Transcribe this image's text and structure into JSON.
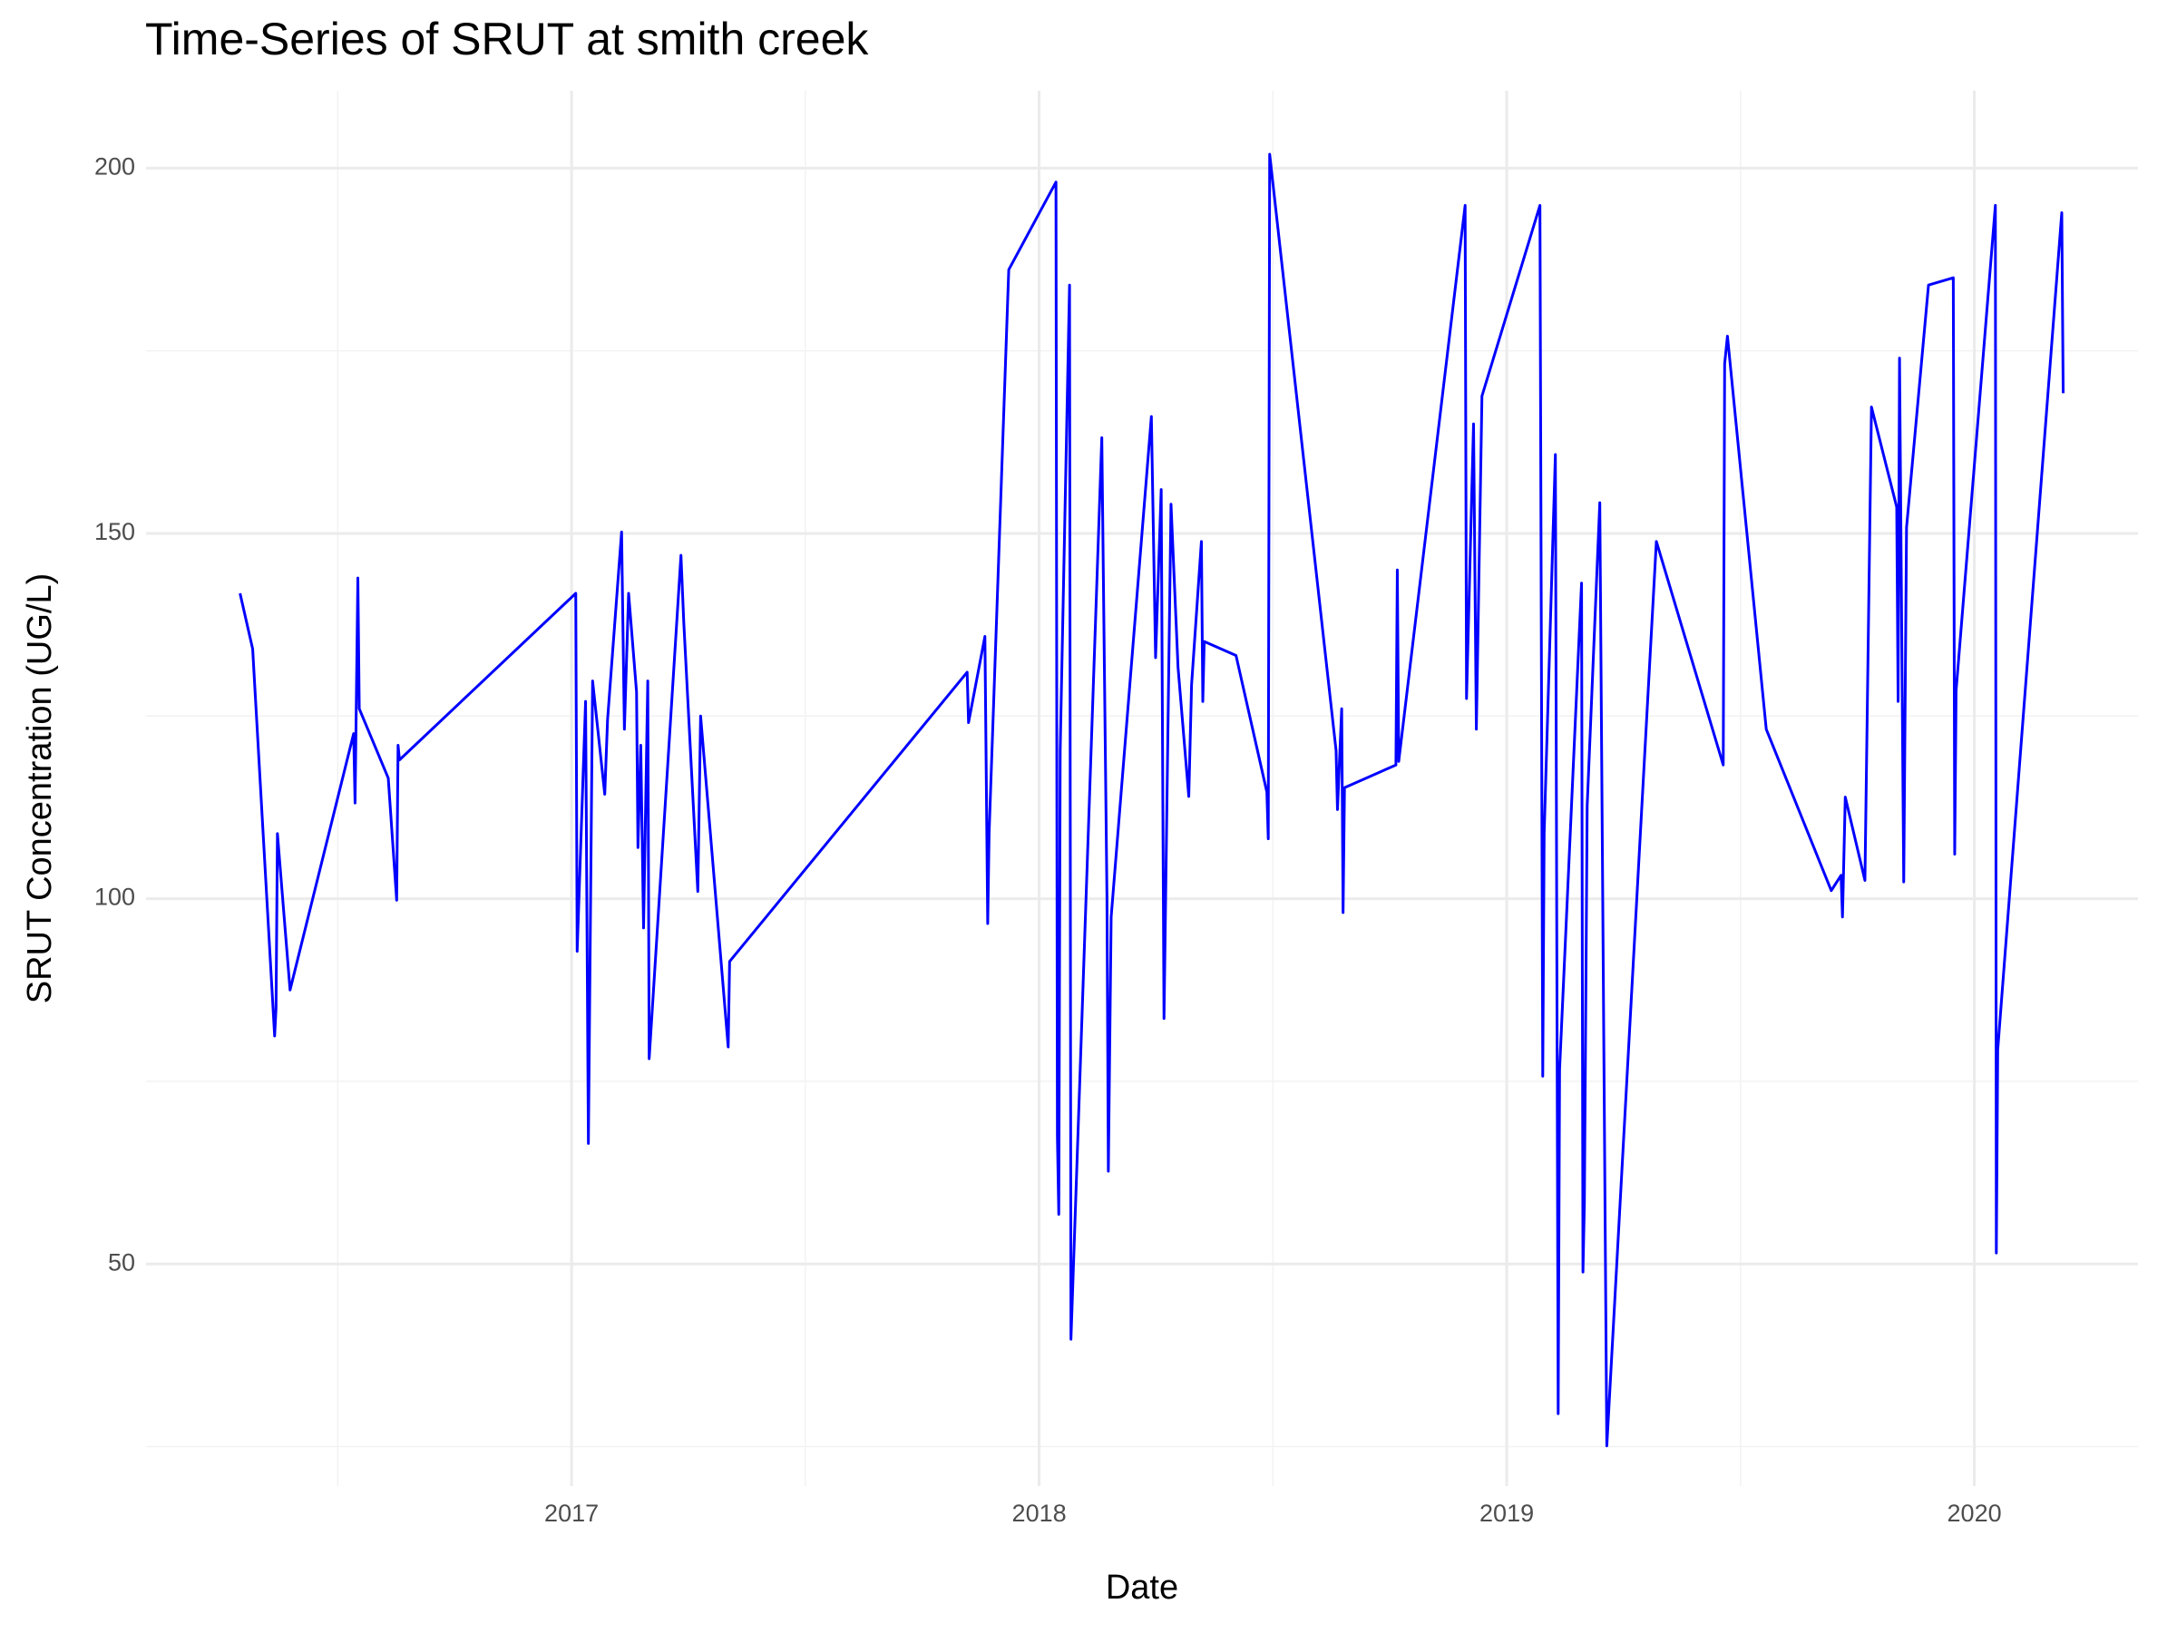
{
  "chart_data": {
    "type": "line",
    "title": "Time-Series of SRUT at smith creek",
    "x_label": "Date",
    "y_label": "SRUT Concentration (UG/L)",
    "color": "#0000ff",
    "grid": true,
    "xlim": [
      2016.09,
      2020.35
    ],
    "xticks": [
      2017,
      2018,
      2019,
      2020
    ],
    "ylim": [
      19.6,
      210.6
    ],
    "yticks": [
      50,
      100,
      150,
      200
    ],
    "x": [
      2016.291,
      2016.318,
      2016.365,
      2016.368,
      2016.371,
      2016.398,
      2016.534,
      2016.537,
      2016.543,
      2016.546,
      2016.608,
      2016.626,
      2016.629,
      2016.632,
      2017.009,
      2017.012,
      2017.03,
      2017.036,
      2017.045,
      2017.071,
      2017.077,
      2017.107,
      2017.113,
      2017.122,
      2017.139,
      2017.142,
      2017.148,
      2017.154,
      2017.163,
      2017.166,
      2017.234,
      2017.24,
      2017.27,
      2017.276,
      2017.335,
      2017.338,
      2017.846,
      2017.849,
      2017.884,
      2017.89,
      2017.893,
      2017.935,
      2018.036,
      2018.039,
      2018.042,
      2018.045,
      2018.065,
      2018.068,
      2018.134,
      2018.145,
      2018.148,
      2018.154,
      2018.24,
      2018.249,
      2018.261,
      2018.267,
      2018.282,
      2018.297,
      2018.32,
      2018.326,
      2018.347,
      2018.35,
      2018.353,
      2018.421,
      2018.487,
      2018.49,
      2018.493,
      2018.635,
      2018.638,
      2018.647,
      2018.65,
      2018.653,
      2018.763,
      2018.766,
      2018.769,
      2018.911,
      2018.914,
      2018.929,
      2018.935,
      2018.947,
      2019.071,
      2019.077,
      2019.08,
      2019.104,
      2019.11,
      2019.113,
      2019.16,
      2019.163,
      2019.166,
      2019.172,
      2019.199,
      2019.214,
      2019.32,
      2019.463,
      2019.466,
      2019.472,
      2019.555,
      2019.694,
      2019.715,
      2019.718,
      2019.724,
      2019.766,
      2019.78,
      2019.834,
      2019.837,
      2019.84,
      2019.849,
      2019.855,
      2019.902,
      2019.955,
      2019.958,
      2019.961,
      2020.045,
      2020.047,
      2020.05,
      2020.187,
      2020.19
    ],
    "values": [
      141.8,
      134.2,
      81.2,
      85,
      108.9,
      87.5,
      122.6,
      113.1,
      143.9,
      126.0,
      116.5,
      99.8,
      121,
      119,
      141.8,
      92.8,
      127,
      66.5,
      129.8,
      114.3,
      124.5,
      150.2,
      123.2,
      141.8,
      128.3,
      107,
      121,
      96,
      129.8,
      78.1,
      147,
      137.8,
      101,
      125,
      79.7,
      91.4,
      131,
      124.1,
      135.9,
      96.6,
      109,
      186.1,
      198.1,
      67.5,
      56.8,
      120.3,
      184,
      39.7,
      163.1,
      100.4,
      62.7,
      97.5,
      166,
      133,
      156,
      83.6,
      154,
      131.7,
      114,
      129.3,
      148.9,
      127,
      135.2,
      133.3,
      114.6,
      108.2,
      201.9,
      120.3,
      112.2,
      126,
      98.1,
      115.2,
      118.3,
      145,
      118.8,
      194.9,
      127.4,
      165,
      123.2,
      168.8,
      194.9,
      75.7,
      108.9,
      160.8,
      29.5,
      76.6,
      143.2,
      48.9,
      58.2,
      112.7,
      154.2,
      25.1,
      148.9,
      118.3,
      173.2,
      177,
      123.2,
      101.1,
      103.2,
      97.5,
      113.9,
      102.5,
      167.3,
      153.6,
      127,
      174,
      102.3,
      150.8,
      184,
      185,
      106.1,
      128.5,
      194.9,
      51.5,
      79.3,
      193.9,
      169.2
    ]
  }
}
